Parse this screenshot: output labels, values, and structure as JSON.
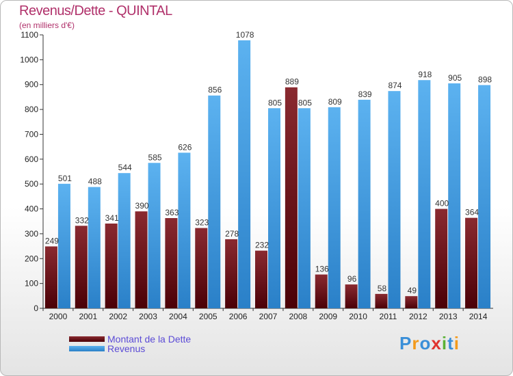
{
  "header": {
    "title": "Revenus/Dette - QUINTAL",
    "subtitle": "(en milliers d'€)"
  },
  "legend": {
    "items": [
      {
        "label": "Montant de la Dette",
        "color": "#6b0d14"
      },
      {
        "label": "Revenus",
        "color": "#3f9be3"
      }
    ]
  },
  "logo": {
    "text": "Proxiti"
  },
  "chart_data": {
    "type": "bar",
    "title": "Revenus/Dette - QUINTAL",
    "subtitle": "(en milliers d'€)",
    "categories": [
      "2000",
      "2001",
      "2002",
      "2003",
      "2004",
      "2005",
      "2006",
      "2007",
      "2008",
      "2009",
      "2010",
      "2011",
      "2012",
      "2013",
      "2014"
    ],
    "series": [
      {
        "name": "Montant de la Dette",
        "color": "#6b0d14",
        "values": [
          249,
          332,
          341,
          390,
          363,
          323,
          278,
          232,
          889,
          136,
          96,
          58,
          49,
          400,
          364
        ]
      },
      {
        "name": "Revenus",
        "color": "#3f9be3",
        "values": [
          501,
          488,
          544,
          585,
          626,
          856,
          1078,
          805,
          805,
          809,
          839,
          874,
          918,
          905,
          898
        ]
      }
    ],
    "ylim": [
      0,
      1100
    ],
    "yticks": [
      0,
      100,
      200,
      300,
      400,
      500,
      600,
      700,
      800,
      900,
      1000,
      1100
    ],
    "grid": false,
    "legend_position": "bottom-left"
  }
}
